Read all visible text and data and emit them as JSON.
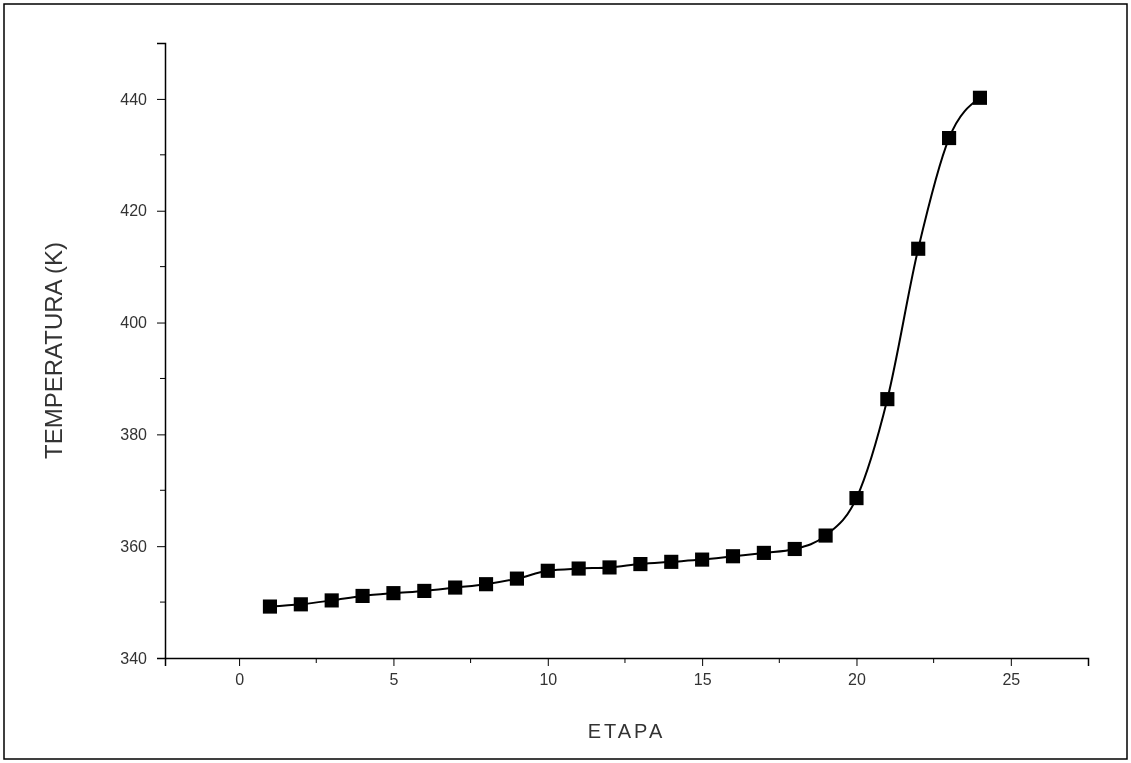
{
  "chart_data": {
    "type": "line",
    "xlabel": "ETAPA",
    "ylabel": "TEMPERATURA (K)",
    "x": [
      1,
      2,
      3,
      4,
      5,
      6,
      7,
      8,
      9,
      10,
      11,
      12,
      13,
      14,
      15,
      16,
      17,
      18,
      19,
      20,
      21,
      22,
      23,
      24
    ],
    "series": [
      {
        "color": "#000000",
        "values": [
          349.2,
          349.6,
          350.3,
          351.1,
          351.6,
          352.0,
          352.6,
          353.2,
          354.2,
          355.6,
          356.0,
          356.2,
          356.8,
          357.2,
          357.6,
          358.2,
          358.8,
          359.5,
          361.9,
          368.6,
          386.3,
          413.2,
          433.0,
          440.2
        ]
      }
    ],
    "xlim": [
      -2.4,
      27.5
    ],
    "xticks": [
      0,
      5,
      10,
      15,
      20,
      25
    ],
    "ylim": [
      340,
      450
    ],
    "yticks": [
      340,
      360,
      380,
      400,
      420,
      440
    ],
    "marker": "square",
    "line_style": "solid",
    "grid": false
  }
}
